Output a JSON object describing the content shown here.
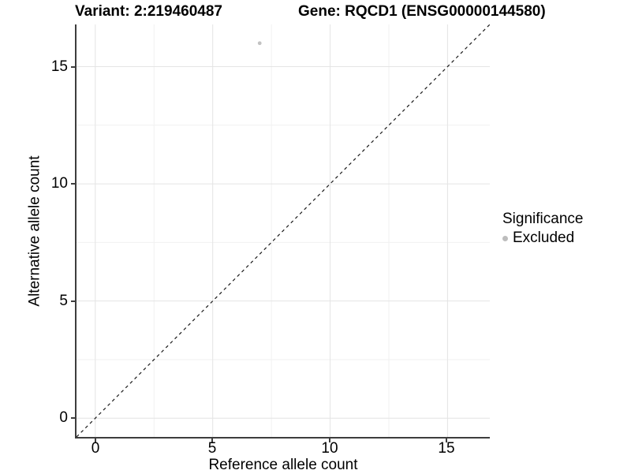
{
  "titles": {
    "variant": "Variant: 2:219460487",
    "gene": "Gene: RQCD1 (ENSG00000144580)"
  },
  "axes": {
    "x": {
      "label": "Reference allele count",
      "ticks": [
        "0",
        "5",
        "10",
        "15"
      ]
    },
    "y": {
      "label": "Alternative allele count",
      "ticks": [
        "15",
        "10",
        "5",
        "0"
      ]
    }
  },
  "legend": {
    "title": "Significance",
    "items": [
      {
        "label": "Excluded",
        "color": "#bdbdbd"
      }
    ]
  },
  "colors": {
    "background": "#ffffff",
    "axis_line": "#3d3d3d",
    "grid_major": "#e4e4e4",
    "grid_minor": "#f1f1f1",
    "point": "#c2c2c2",
    "dashed_line": "#1a1a1a",
    "text": "#000000"
  },
  "chart_data": {
    "type": "scatter",
    "title": "Variant: 2:219460487 — Gene: RQCD1 (ENSG00000144580)",
    "xlabel": "Reference allele count",
    "ylabel": "Alternative allele count",
    "xlim": [
      -0.8,
      16.8
    ],
    "ylim": [
      -0.8,
      16.8
    ],
    "x_ticks": [
      0,
      5,
      10,
      15
    ],
    "y_ticks": [
      0,
      5,
      10,
      15
    ],
    "x_minor": [
      2.5,
      7.5,
      12.5
    ],
    "y_minor": [
      2.5,
      7.5,
      12.5
    ],
    "grid": "major and minor gridlines on",
    "legend_position": "right-center",
    "series": [
      {
        "name": "Excluded",
        "color": "#c2c2c2",
        "points": [
          {
            "x": 7,
            "y": 16
          }
        ]
      }
    ],
    "annotations": [
      {
        "type": "abline",
        "slope": 1,
        "intercept": 0,
        "linestyle": "dashed",
        "color": "#1a1a1a",
        "note": "identity line y = x, corner to corner"
      }
    ]
  }
}
